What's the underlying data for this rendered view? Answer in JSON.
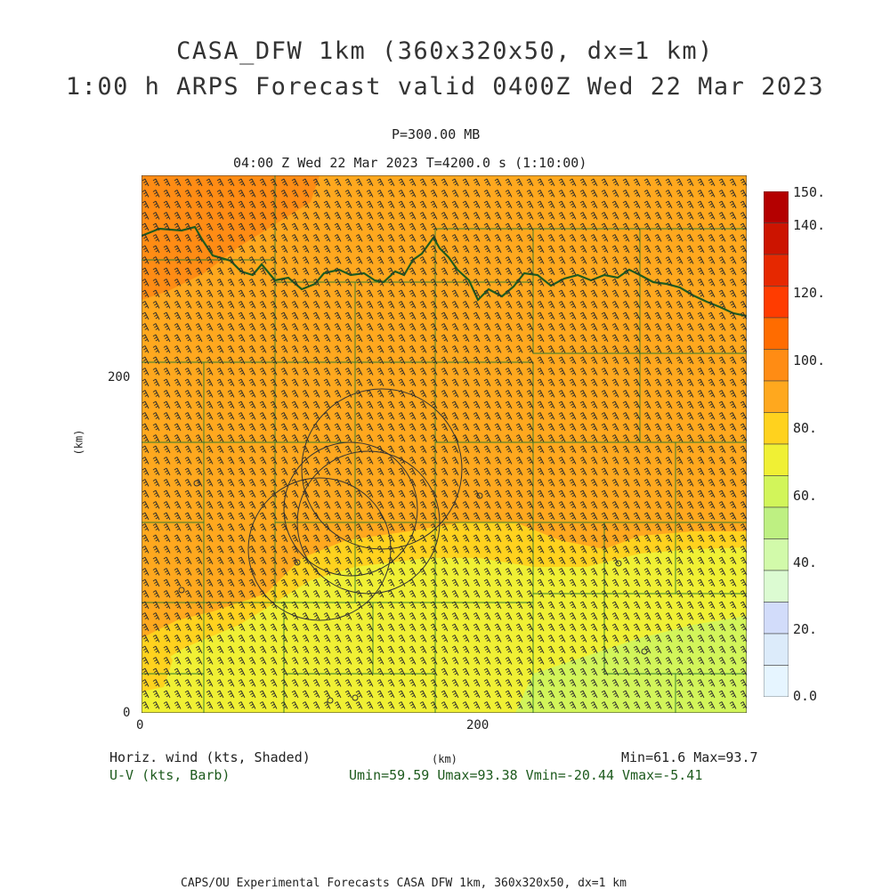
{
  "title": {
    "line1": "CASA_DFW 1km (360x320x50, dx=1 km)",
    "line2": "1:00 h ARPS Forecast valid 0400Z Wed 22 Mar 2023"
  },
  "subtitle": {
    "pressure": "P=300.00 MB",
    "time": "04:00 Z Wed 22 Mar 2023    T=4200.0 s (1:10:00)"
  },
  "axes": {
    "y_unit": "(km)",
    "x_unit": "(km)",
    "y_ticks": [
      "0",
      "200"
    ],
    "x_ticks": [
      "0",
      "200"
    ]
  },
  "legend": {
    "field_label": "Horiz. wind (kts, Shaded)",
    "barb_label": "U-V (kts, Barb)",
    "minmax": "Min=61.6 Max=93.7",
    "uv_stats": "Umin=59.59 Umax=93.38 Vmin=-20.44 Vmax=-5.41"
  },
  "colorbar": {
    "labels": [
      "150.",
      "140.",
      "120.",
      "100.",
      "80.",
      "60.",
      "40.",
      "20.",
      "0.0"
    ],
    "colors": [
      "#b40000",
      "#cc1400",
      "#e62800",
      "#ff3c00",
      "#ff6c00",
      "#ff8c14",
      "#ffa81e",
      "#ffd21e",
      "#f0f034",
      "#d2f55a",
      "#bef082",
      "#d2faaa",
      "#dcfbd2",
      "#d2dcfa",
      "#dcebfa",
      "#e6f5ff"
    ]
  },
  "footer": "CAPS/OU Experimental Forecasts  CASA DFW 1km, 360x320x50, dx=1 km",
  "field": {
    "colors": {
      "c85_90": "#ff8c14",
      "c80_85": "#ffa81e",
      "c75_80": "#ffd21e",
      "c70_75": "#f0f034",
      "c65_70": "#d2f55a"
    },
    "barb_color": "#2b2b2b",
    "county_color": "#2e7d2e",
    "river_color": "#1f5b1f",
    "radar_color": "#333333"
  }
}
